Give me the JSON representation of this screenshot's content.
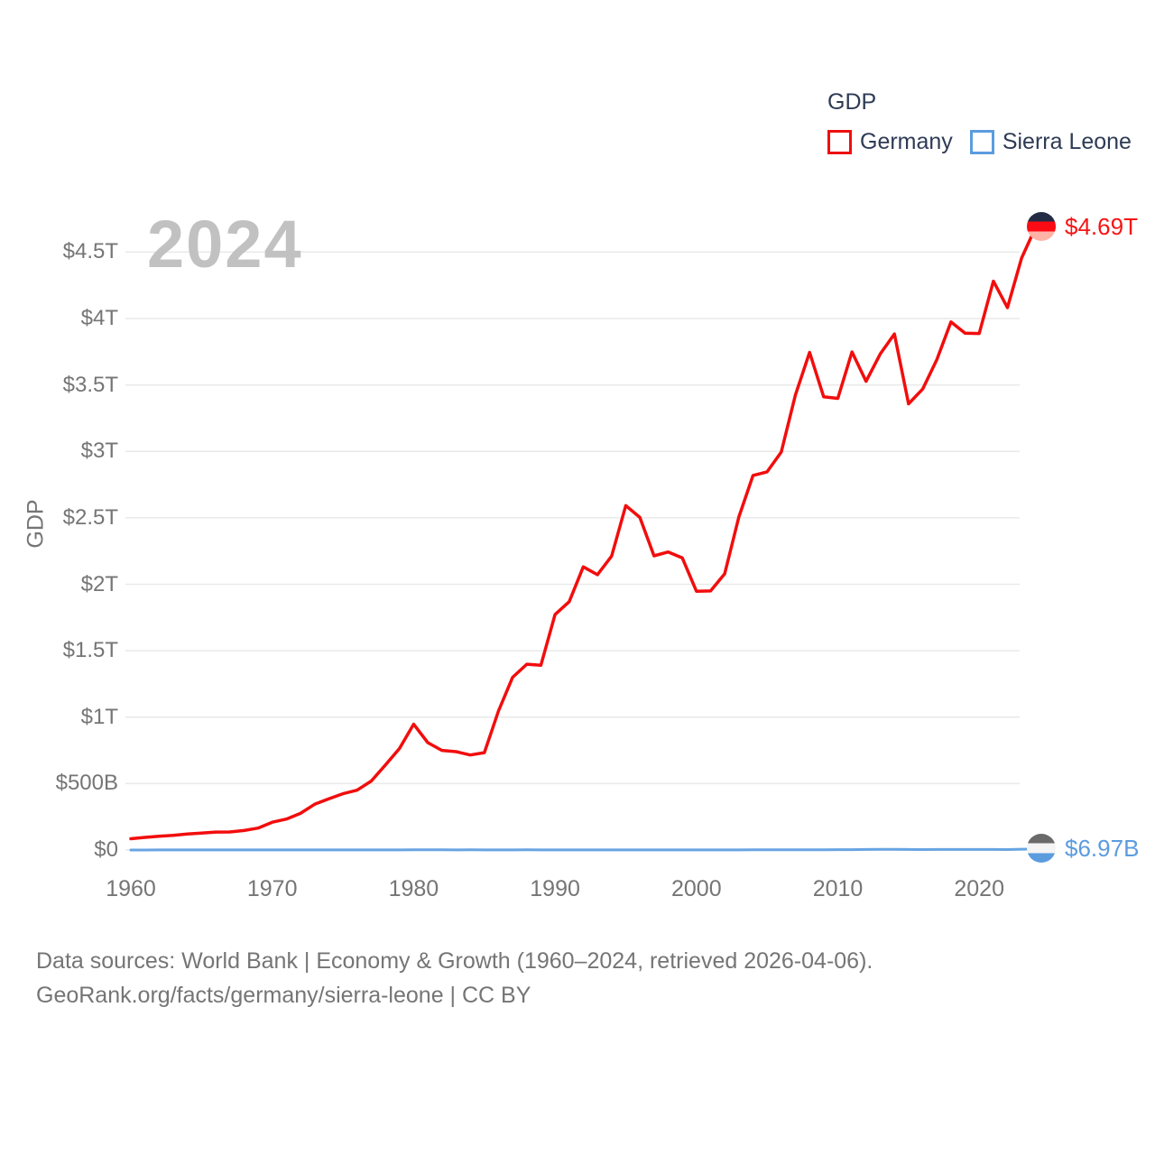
{
  "legend": {
    "title": "GDP",
    "items": [
      {
        "label": "Germany",
        "color": "#ee0f0f"
      },
      {
        "label": "Sierra Leone",
        "color": "#5b9cdf"
      }
    ]
  },
  "watermark_year": "2024",
  "axis_title_y": "GDP",
  "end_labels": {
    "germany": {
      "value": "$4.69T",
      "color": "#f51515",
      "flag_icon": "germany-flag",
      "flag_colors": [
        "#232c45",
        "#fb0b14",
        "#ffb3a6"
      ]
    },
    "sierra_leone": {
      "value": "$6.97B",
      "color": "#5b9cdf",
      "flag_icon": "sierra-leone-flag",
      "flag_colors": [
        "#6a6a6a",
        "#f4f4f4",
        "#5b9cdf"
      ]
    }
  },
  "footer": {
    "line1": "Data sources: World Bank | Economy & Growth (1960–2024, retrieved 2026-04-06).",
    "line2": "GeoRank.org/facts/germany/sierra-leone | CC BY"
  },
  "chart_data": {
    "type": "line",
    "title": "GDP",
    "ylabel": "GDP",
    "unit": "USD, billions (current US$)",
    "grid": true,
    "legend_position": "top-right",
    "x_range": [
      1960,
      2024
    ],
    "x_step_years": 1,
    "x_ticks": [
      1960,
      1970,
      1980,
      1990,
      2000,
      2010,
      2020
    ],
    "ylim_billions": [
      0,
      4830
    ],
    "y_ticks": [
      {
        "label": "$0",
        "value": 0
      },
      {
        "label": "$500B",
        "value": 500
      },
      {
        "label": "$1T",
        "value": 1000
      },
      {
        "label": "$1.5T",
        "value": 1500
      },
      {
        "label": "$2T",
        "value": 2000
      },
      {
        "label": "$2.5T",
        "value": 2500
      },
      {
        "label": "$3T",
        "value": 3000
      },
      {
        "label": "$3.5T",
        "value": 3500
      },
      {
        "label": "$4T",
        "value": 4000
      },
      {
        "label": "$4.5T",
        "value": 4500
      }
    ],
    "series": [
      {
        "name": "Germany",
        "color": "#f20d0d",
        "end_label": "$4.69T",
        "values_billions": [
          85,
          95,
          104,
          110,
          120,
          128,
          135,
          136,
          147,
          165,
          209,
          233,
          276,
          344,
          385,
          424,
          450,
          519,
          640,
          764,
          947,
          808,
          750,
          740,
          715,
          733,
          1046,
          1300,
          1398,
          1390,
          1772,
          1869,
          2131,
          2072,
          2212,
          2592,
          2503,
          2214,
          2243,
          2199,
          1948,
          1950,
          2079,
          2506,
          2819,
          2846,
          2995,
          3425,
          3745,
          3411,
          3399,
          3749,
          3527,
          3733,
          3884,
          3358,
          3469,
          3690,
          3974,
          3889,
          3887,
          4281,
          4082,
          4456,
          4690
        ]
      },
      {
        "name": "Sierra Leone",
        "color": "#68a4e2",
        "end_label": "$6.97B",
        "values_billions": [
          0.32,
          0.33,
          0.35,
          0.36,
          0.38,
          0.4,
          0.37,
          0.37,
          0.38,
          0.42,
          0.43,
          0.44,
          0.49,
          0.55,
          0.62,
          0.66,
          0.62,
          0.72,
          0.83,
          0.95,
          1.1,
          1.11,
          1.18,
          0.98,
          1.09,
          0.87,
          0.6,
          0.72,
          1.06,
          0.92,
          0.65,
          0.78,
          0.68,
          0.77,
          0.79,
          0.87,
          0.94,
          0.85,
          0.67,
          0.67,
          0.64,
          0.81,
          0.93,
          0.99,
          1.08,
          1.17,
          1.42,
          1.67,
          1.97,
          1.96,
          2.58,
          2.94,
          3.8,
          4.92,
          5.02,
          4.22,
          3.67,
          3.74,
          4.09,
          4.12,
          4.06,
          4.04,
          3.52,
          6.41,
          6.97
        ]
      }
    ]
  }
}
